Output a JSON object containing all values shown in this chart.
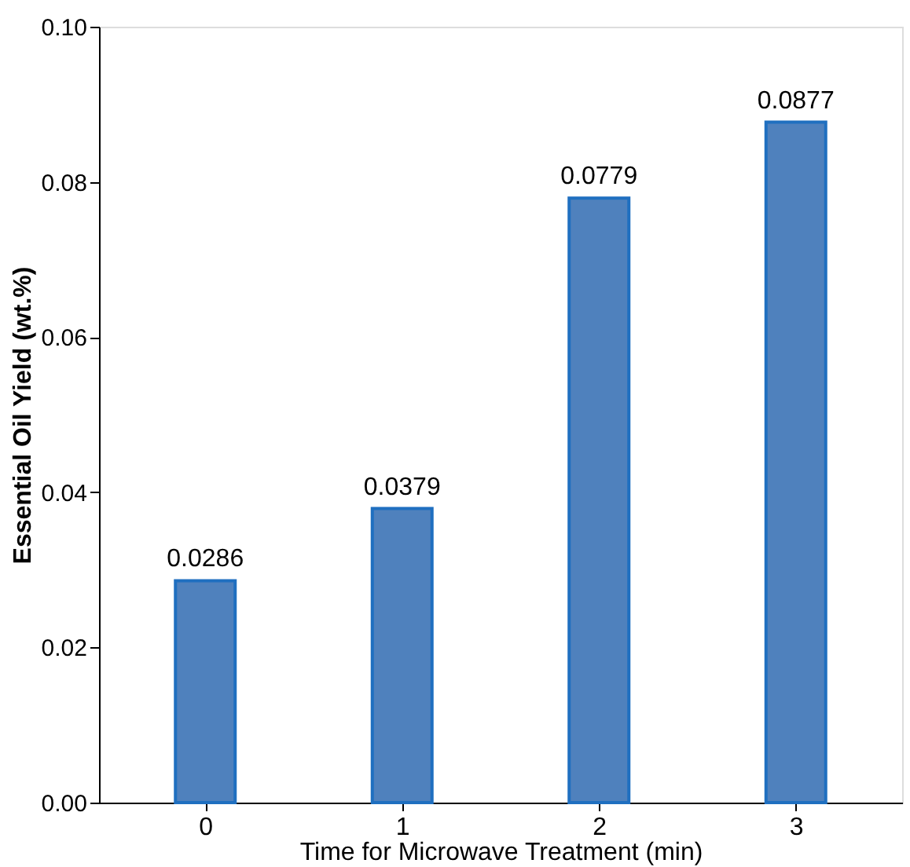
{
  "chart_data": {
    "type": "bar",
    "xlabel": "Time for Microwave Treatment (min)",
    "ylabel": "Essential Oil Yield (wt.%)",
    "categories": [
      "0",
      "1",
      "2",
      "3"
    ],
    "values": [
      0.0286,
      0.0379,
      0.0779,
      0.0877
    ],
    "color": "#4f81bd",
    "ylim": [
      0,
      0.1
    ],
    "yticks": [
      {
        "value": 0,
        "label": "0.00"
      },
      {
        "value": 0.02,
        "label": "0.02"
      },
      {
        "value": 0.04,
        "label": "0.04"
      },
      {
        "value": 0.06,
        "label": "0.06"
      },
      {
        "value": 0.08,
        "label": "0.08"
      },
      {
        "value": 0.1,
        "label": "0.10"
      }
    ],
    "data_labels": true,
    "grid": false
  }
}
